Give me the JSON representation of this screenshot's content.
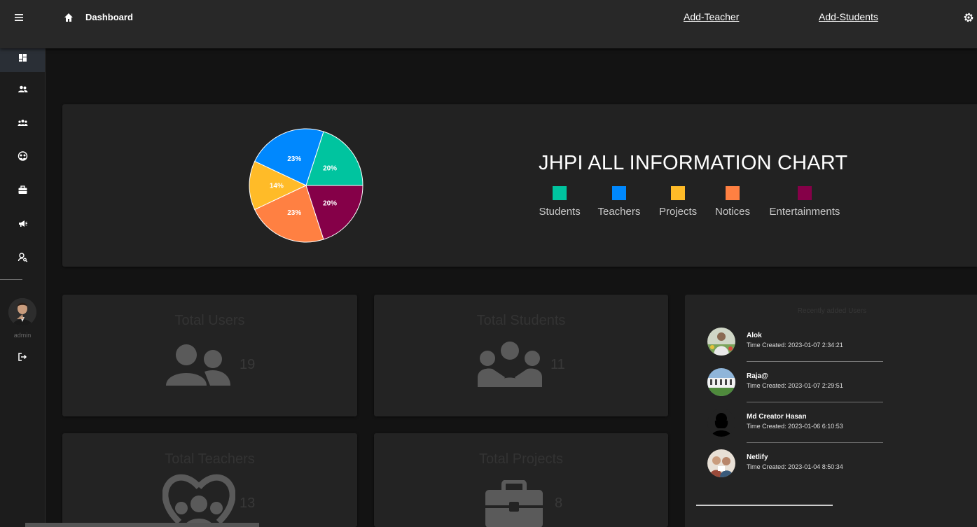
{
  "header": {
    "title": "Dashboard",
    "links": [
      "Add-Teacher",
      "Add-Students"
    ]
  },
  "sidebar": {
    "items": [
      {
        "icon": "dashboard-icon",
        "active": true
      },
      {
        "icon": "users-icon",
        "active": false
      },
      {
        "icon": "group-icon",
        "active": false
      },
      {
        "icon": "teachers-icon",
        "active": false
      },
      {
        "icon": "projects-icon",
        "active": false
      },
      {
        "icon": "notices-icon",
        "active": false
      },
      {
        "icon": "user-search-icon",
        "active": false
      }
    ],
    "user_label": "admin"
  },
  "chart_data": {
    "type": "pie",
    "title": "JHPI ALL INFORMATION CHART",
    "categories": [
      "Students",
      "Teachers",
      "Projects",
      "Notices",
      "Entertainments"
    ],
    "values": [
      20,
      23,
      14,
      23,
      20
    ],
    "labels": [
      "20%",
      "23%",
      "14%",
      "23%",
      "20%"
    ],
    "colors": [
      "#00c49f",
      "#0088fe",
      "#ffbb28",
      "#ff8042",
      "#850048"
    ],
    "legend_position": "right"
  },
  "stats": [
    {
      "title": "Total Users",
      "count": "19",
      "icon": "users-icon"
    },
    {
      "title": "Total Students",
      "count": "11",
      "icon": "group-icon"
    },
    {
      "title": "Total Teachers",
      "count": "13",
      "icon": "teachers-icon"
    },
    {
      "title": "Total Projects",
      "count": "8",
      "icon": "briefcase-icon"
    }
  ],
  "recent_users": {
    "heading": "Recently added Users",
    "items": [
      {
        "name": "Alok",
        "time": "Time Created: 2023-01-07 2:34:21"
      },
      {
        "name": "Raja@",
        "time": "Time Created: 2023-01-07 2:29:51"
      },
      {
        "name": "Md Creator Hasan",
        "time": "Time Created: 2023-01-06 6:10:53"
      },
      {
        "name": "Netlify",
        "time": "Time Created: 2023-01-04 8:50:34"
      }
    ]
  }
}
